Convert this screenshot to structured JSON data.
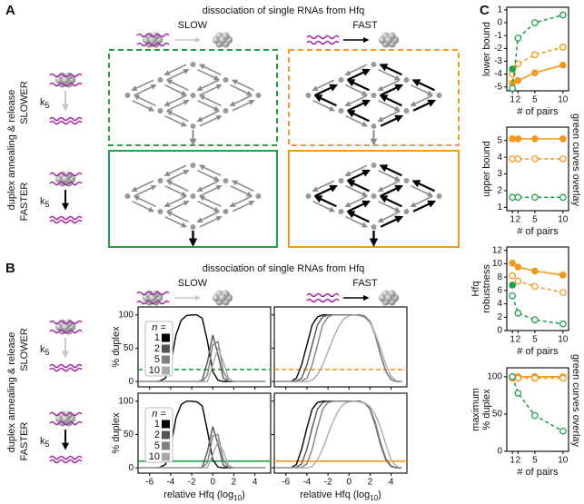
{
  "panel_a": {
    "letter": "A",
    "header": "dissociation of single RNAs from Hfq",
    "columns": [
      "SLOW",
      "FAST"
    ],
    "row_title": "duplex annealing & release",
    "rows": [
      "SLOWER",
      "FASTER"
    ],
    "rate": {
      "symbol": "k",
      "subscript": "5"
    }
  },
  "panel_b": {
    "letter": "B",
    "header": "dissociation of single RNAs from Hfq",
    "columns": [
      "SLOW",
      "FAST"
    ],
    "row_title": "duplex annealing & release",
    "rows": [
      "SLOWER",
      "FASTER"
    ],
    "rate": {
      "symbol": "k",
      "subscript": "5"
    }
  },
  "panel_c": {
    "letter": "C"
  },
  "chart_data": [
    {
      "type": "line",
      "x": [
        -7,
        -6.5,
        -6,
        -5.5,
        -5,
        -4.5,
        -4,
        -3.5,
        -3,
        -2.5,
        -2,
        -1.5,
        -1,
        -0.5,
        0,
        0.5,
        1,
        1.5,
        2,
        2.5,
        3,
        3.5,
        4,
        4.5,
        5
      ],
      "xlim": [
        -7.1,
        5.5
      ],
      "xticks": [
        -6,
        -4,
        -2,
        0,
        2,
        4
      ],
      "show_xtick_labels": false,
      "ylim": [
        -8,
        112
      ],
      "yticks": [
        0,
        50,
        100
      ],
      "ylabel": "% duplex",
      "legend_title": "n =",
      "reference": {
        "value": 18,
        "color": "#22a14a",
        "dashed": true
      },
      "series": [
        {
          "name": "1",
          "color": "#000000",
          "values": [
            0,
            0,
            0,
            0,
            1,
            5,
            25,
            70,
            92,
            99,
            100,
            100,
            95,
            60,
            15,
            2,
            0,
            0,
            0,
            0,
            0,
            0,
            0,
            0,
            0
          ]
        },
        {
          "name": "2",
          "color": "#555555",
          "values": [
            0,
            0,
            0,
            0,
            0,
            0,
            0,
            0,
            0,
            0,
            0,
            0,
            2,
            30,
            70,
            40,
            5,
            0,
            0,
            0,
            0,
            0,
            0,
            0,
            0
          ]
        },
        {
          "name": "5",
          "color": "#808080",
          "values": [
            0,
            0,
            0,
            0,
            0,
            0,
            0,
            0,
            0,
            0,
            0,
            0,
            0,
            10,
            55,
            60,
            15,
            1,
            0,
            0,
            0,
            0,
            0,
            0,
            0
          ]
        },
        {
          "name": "10",
          "color": "#ababab",
          "values": [
            0,
            0,
            0,
            0,
            0,
            0,
            0,
            0,
            0,
            0,
            0,
            0,
            0,
            0,
            25,
            50,
            30,
            5,
            0,
            0,
            0,
            0,
            0,
            0,
            0
          ]
        }
      ]
    },
    {
      "type": "line",
      "x": [
        -7,
        -6.5,
        -6,
        -5.5,
        -5,
        -4.5,
        -4,
        -3.5,
        -3,
        -2.5,
        -2,
        -1.5,
        -1,
        -0.5,
        0,
        0.5,
        1,
        1.5,
        2,
        2.5,
        3,
        3.5,
        4,
        4.5,
        5
      ],
      "xlim": [
        -7.1,
        5.5
      ],
      "xticks": [
        -6,
        -4,
        -2,
        0,
        2,
        4
      ],
      "show_xtick_labels": false,
      "ylim": [
        -8,
        112
      ],
      "yticks": [
        0,
        50,
        100
      ],
      "show_ytick_labels": false,
      "reference": {
        "value": 18,
        "color": "#f39a1e",
        "dashed": true
      },
      "series": [
        {
          "color": "#000000",
          "values": [
            0,
            0,
            0,
            0,
            5,
            25,
            55,
            85,
            97,
            100,
            100,
            100,
            100,
            100,
            100,
            100,
            100,
            98,
            90,
            70,
            40,
            15,
            3,
            0,
            0
          ]
        },
        {
          "color": "#555555",
          "values": [
            0,
            0,
            0,
            0,
            1,
            5,
            25,
            55,
            85,
            97,
            100,
            100,
            100,
            100,
            100,
            100,
            100,
            98,
            90,
            70,
            40,
            15,
            3,
            0,
            0
          ]
        },
        {
          "color": "#808080",
          "values": [
            0,
            0,
            0,
            0,
            0,
            1,
            5,
            25,
            55,
            85,
            97,
            100,
            100,
            100,
            100,
            100,
            99,
            97,
            90,
            70,
            40,
            15,
            3,
            0,
            0
          ]
        },
        {
          "color": "#ababab",
          "values": [
            0,
            0,
            0,
            0,
            0,
            0,
            0,
            2,
            10,
            25,
            45,
            65,
            82,
            94,
            99,
            100,
            99,
            96,
            88,
            72,
            50,
            25,
            8,
            1,
            0
          ]
        }
      ]
    },
    {
      "type": "line",
      "x": [
        -7,
        -6.5,
        -6,
        -5.5,
        -5,
        -4.5,
        -4,
        -3.5,
        -3,
        -2.5,
        -2,
        -1.5,
        -1,
        -0.5,
        0,
        0.5,
        1,
        1.5,
        2,
        2.5,
        3,
        3.5,
        4,
        4.5,
        5
      ],
      "xlim": [
        -7.1,
        5.5
      ],
      "xticks": [
        -6,
        -4,
        -2,
        0,
        2,
        4
      ],
      "xlabel": {
        "text": "relative Hfq (log",
        "sub": "10",
        "end": ")"
      },
      "ylim": [
        -8,
        112
      ],
      "yticks": [
        0,
        50,
        100
      ],
      "ylabel": "% duplex",
      "legend_title": "n =",
      "reference": {
        "value": 10,
        "color": "#22a14a",
        "dashed": false
      },
      "series": [
        {
          "name": "1",
          "color": "#000000",
          "values": [
            0,
            0,
            0,
            0,
            1,
            5,
            30,
            75,
            95,
            100,
            100,
            99,
            93,
            55,
            12,
            1,
            0,
            0,
            0,
            0,
            0,
            0,
            0,
            0,
            0
          ]
        },
        {
          "name": "2",
          "color": "#555555",
          "values": [
            0,
            0,
            0,
            0,
            0,
            0,
            0,
            0,
            0,
            0,
            0,
            0,
            1,
            25,
            62,
            35,
            4,
            0,
            0,
            0,
            0,
            0,
            0,
            0,
            0
          ]
        },
        {
          "name": "5",
          "color": "#808080",
          "values": [
            0,
            0,
            0,
            0,
            0,
            0,
            0,
            0,
            0,
            0,
            0,
            0,
            0,
            8,
            48,
            50,
            12,
            1,
            0,
            0,
            0,
            0,
            0,
            0,
            0
          ]
        },
        {
          "name": "10",
          "color": "#ababab",
          "values": [
            0,
            0,
            0,
            0,
            0,
            0,
            0,
            0,
            0,
            0,
            0,
            0,
            0,
            0,
            20,
            40,
            25,
            4,
            0,
            0,
            0,
            0,
            0,
            0,
            0
          ]
        }
      ]
    },
    {
      "type": "line",
      "x": [
        -7,
        -6.5,
        -6,
        -5.5,
        -5,
        -4.5,
        -4,
        -3.5,
        -3,
        -2.5,
        -2,
        -1.5,
        -1,
        -0.5,
        0,
        0.5,
        1,
        1.5,
        2,
        2.5,
        3,
        3.5,
        4,
        4.5,
        5
      ],
      "xlim": [
        -7.1,
        5.5
      ],
      "xticks": [
        -6,
        -4,
        -2,
        0,
        2,
        4
      ],
      "xlabel": {
        "text": "relative Hfq (log",
        "sub": "10",
        "end": ")"
      },
      "ylim": [
        -8,
        112
      ],
      "yticks": [
        0,
        50,
        100
      ],
      "show_ytick_labels": false,
      "reference": {
        "value": 10,
        "color": "#f39a1e",
        "dashed": false
      },
      "series": [
        {
          "color": "#000000",
          "values": [
            0,
            0,
            0,
            0,
            5,
            28,
            60,
            88,
            98,
            100,
            100,
            100,
            100,
            100,
            100,
            100,
            100,
            97,
            88,
            65,
            35,
            12,
            2,
            0,
            0
          ]
        },
        {
          "color": "#555555",
          "values": [
            0,
            0,
            0,
            0,
            1,
            6,
            28,
            60,
            88,
            98,
            100,
            100,
            100,
            100,
            100,
            100,
            100,
            97,
            88,
            66,
            36,
            12,
            2,
            0,
            0
          ]
        },
        {
          "color": "#808080",
          "values": [
            0,
            0,
            0,
            0,
            0,
            1,
            6,
            28,
            60,
            88,
            98,
            100,
            100,
            100,
            100,
            100,
            99,
            97,
            89,
            68,
            38,
            14,
            3,
            0,
            0
          ]
        },
        {
          "color": "#ababab",
          "values": [
            0,
            0,
            0,
            0,
            0,
            0,
            0,
            2,
            12,
            28,
            50,
            70,
            86,
            96,
            99,
            100,
            99,
            97,
            92,
            80,
            60,
            35,
            12,
            2,
            0
          ]
        }
      ]
    },
    {
      "type": "line",
      "x": [
        1,
        2,
        5,
        10
      ],
      "xlim": [
        0,
        11
      ],
      "xticks": [
        1,
        2,
        5,
        10
      ],
      "xlabel": "# of pairs",
      "ylim": [
        -5.3,
        1.2
      ],
      "yticks": [
        -5,
        -4,
        -3,
        -2,
        -1,
        0,
        1
      ],
      "ylabel": [
        "lower bound"
      ],
      "series": [
        {
          "color": "#f39a1e",
          "dashed": false,
          "marker": "filled",
          "values": [
            -4.7,
            -4.5,
            -3.9,
            -3.3
          ]
        },
        {
          "color": "#f39a1e",
          "dashed": true,
          "marker": "open",
          "values": [
            -4.0,
            -3.2,
            -2.5,
            -1.9
          ]
        },
        {
          "color": "#22a14a",
          "dashed": true,
          "marker": "open",
          "values": [
            -5.1,
            -1.2,
            0.0,
            0.6
          ]
        },
        {
          "color": "#22a14a",
          "dashed": false,
          "marker": "filled",
          "values": [
            -3.6,
            null,
            null,
            null
          ]
        }
      ]
    },
    {
      "type": "line",
      "x": [
        1,
        2,
        5,
        10
      ],
      "xlim": [
        0,
        11
      ],
      "xticks": [
        1,
        2,
        5,
        10
      ],
      "xlabel": "# of pairs",
      "ylim": [
        0.8,
        5.8
      ],
      "yticks": [
        1,
        2,
        3,
        4,
        5
      ],
      "ylabel": [
        "upper bound"
      ],
      "annotation": "green curves overlay",
      "series": [
        {
          "color": "#f39a1e",
          "dashed": false,
          "marker": "filled",
          "values": [
            5.1,
            5.1,
            5.1,
            5.1
          ]
        },
        {
          "color": "#f39a1e",
          "dashed": true,
          "marker": "open",
          "values": [
            3.9,
            3.9,
            3.9,
            3.9
          ]
        },
        {
          "color": "#22a14a",
          "dashed": true,
          "marker": "open",
          "values": [
            1.6,
            1.6,
            1.6,
            1.6
          ]
        }
      ]
    },
    {
      "type": "line",
      "x": [
        1,
        2,
        5,
        10
      ],
      "xlim": [
        0,
        11
      ],
      "xticks": [
        1,
        2,
        5,
        10
      ],
      "xlabel": "# of pairs",
      "ylim": [
        0,
        12.5
      ],
      "yticks": [
        0,
        2,
        4,
        6,
        8,
        10,
        12
      ],
      "ylabel": [
        "Hfq",
        "robustness"
      ],
      "series": [
        {
          "color": "#f39a1e",
          "dashed": false,
          "marker": "filled",
          "values": [
            10.1,
            9.5,
            8.9,
            8.3
          ]
        },
        {
          "color": "#f39a1e",
          "dashed": true,
          "marker": "open",
          "values": [
            8.2,
            7.4,
            6.6,
            5.7
          ]
        },
        {
          "color": "#22a14a",
          "dashed": true,
          "marker": "open",
          "values": [
            5.2,
            2.6,
            1.6,
            1.0
          ]
        },
        {
          "color": "#22a14a",
          "dashed": false,
          "marker": "filled",
          "values": [
            6.8,
            null,
            null,
            null
          ]
        }
      ]
    },
    {
      "type": "line",
      "x": [
        1,
        2,
        5,
        10
      ],
      "xlim": [
        0,
        11
      ],
      "xticks": [
        1,
        2,
        5,
        10
      ],
      "xlabel": "# of pairs",
      "ylim": [
        0,
        112
      ],
      "yticks": [
        0,
        50,
        100
      ],
      "ylabel": [
        "maximum",
        "% duplex"
      ],
      "annotation": "green curves overlay",
      "series": [
        {
          "color": "#f39a1e",
          "dashed": false,
          "marker": "filled",
          "values": [
            100,
            100,
            100,
            100
          ]
        },
        {
          "color": "#f39a1e",
          "dashed": true,
          "marker": "open",
          "values": [
            98,
            98,
            98,
            98
          ]
        },
        {
          "color": "#22a14a",
          "dashed": true,
          "marker": "open",
          "values": [
            100,
            78,
            48,
            27
          ]
        }
      ]
    }
  ]
}
